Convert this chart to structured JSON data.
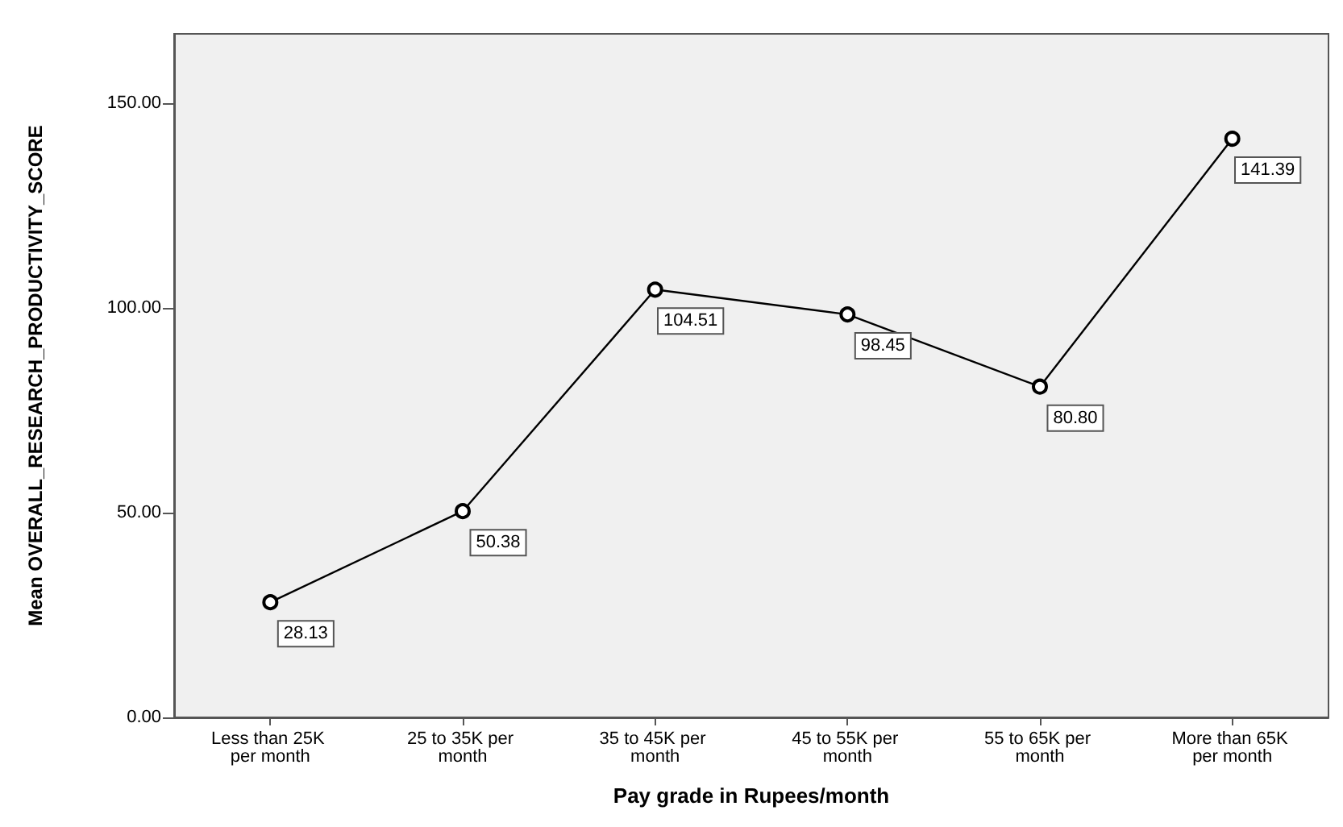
{
  "chart_data": {
    "type": "line",
    "xlabel": "Pay grade in Rupees/month",
    "ylabel": "Mean OVERALL_RESEARCH_PRODUCTIVITY_SCORE",
    "categories": [
      "Less than 25K per month",
      "25 to 35K per month",
      "35 to 45K per month",
      "45 to 55K per month",
      "55 to 65K per month",
      "More than 65K per month"
    ],
    "values": [
      28.13,
      50.38,
      104.51,
      98.45,
      80.8,
      141.39
    ],
    "color": "#000000",
    "ylim": [
      0,
      167
    ],
    "yticks": [
      {
        "value": 0,
        "label": "0.00"
      },
      {
        "value": 50,
        "label": "50.00"
      },
      {
        "value": 100,
        "label": "100.00"
      },
      {
        "value": 150,
        "label": "150.00"
      }
    ],
    "value_labels": [
      "28.13",
      "50.38",
      "104.51",
      "98.45",
      "80.80",
      "141.39"
    ],
    "grid": false,
    "marker": "circle",
    "line_style": "solid"
  }
}
